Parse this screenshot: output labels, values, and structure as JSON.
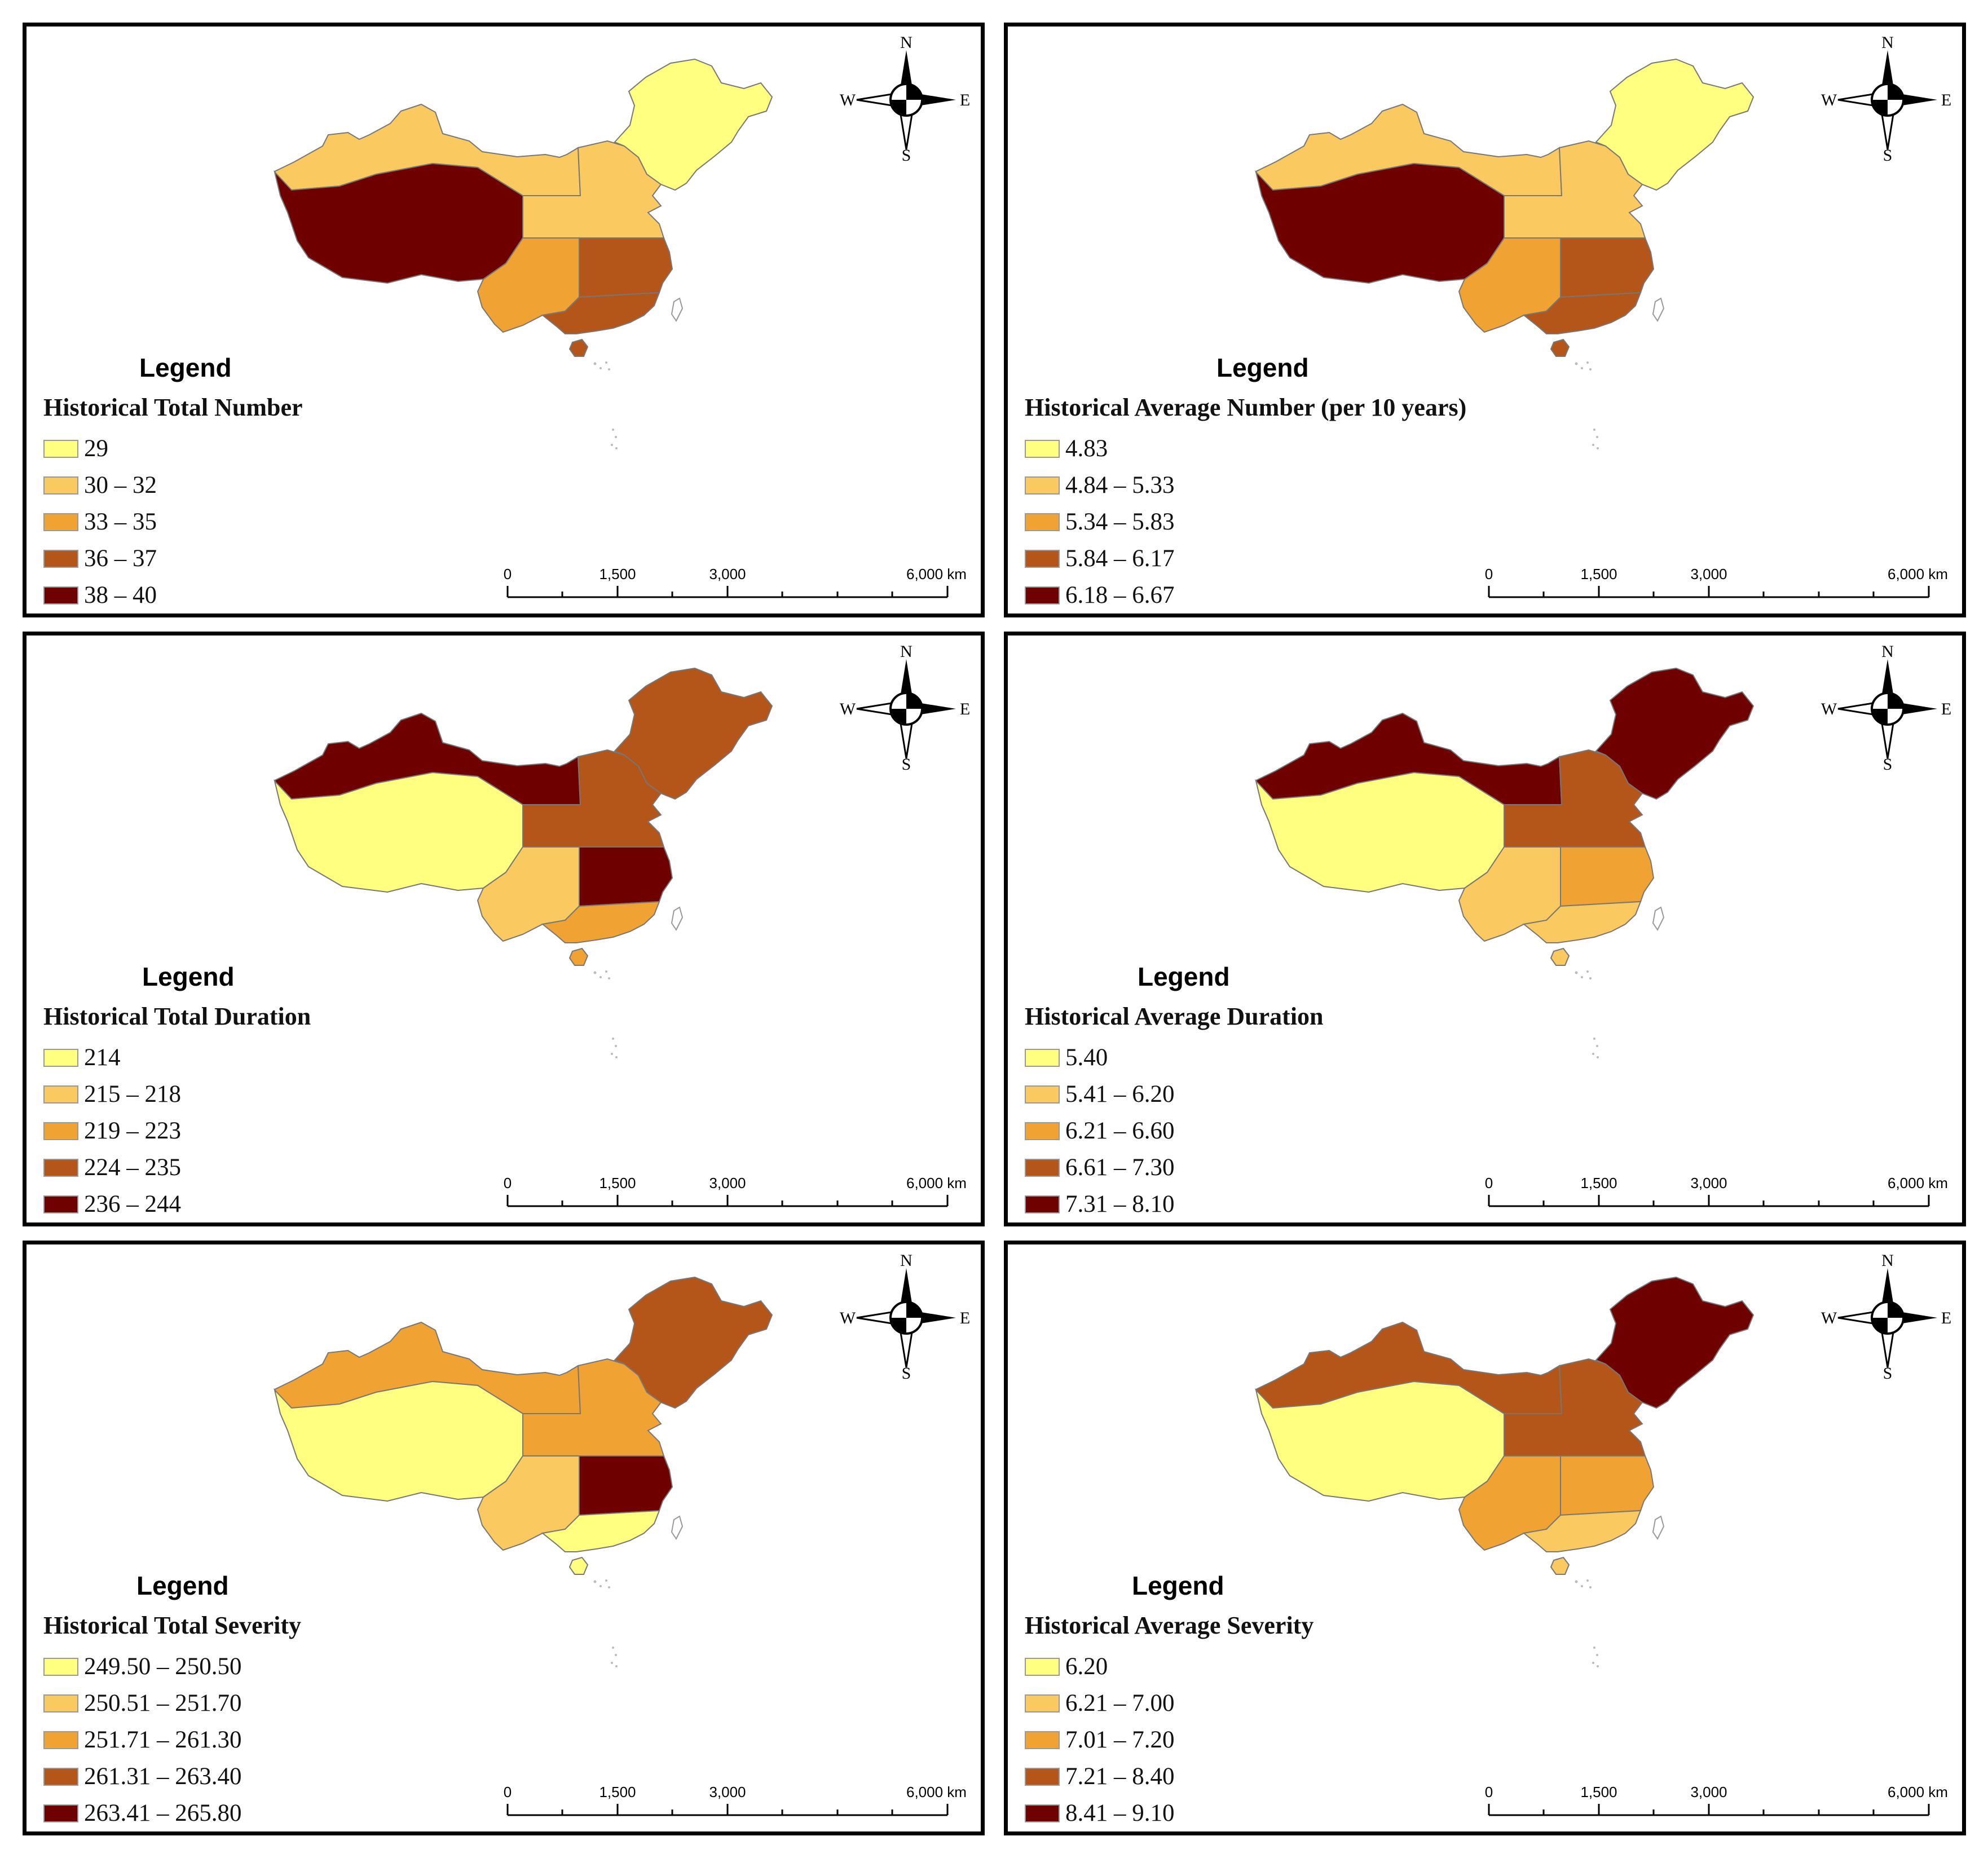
{
  "compass": {
    "n": "N",
    "s": "S",
    "e": "E",
    "w": "W"
  },
  "scale": {
    "ticks": [
      "0",
      "1,500",
      "3,000",
      "6,000 km"
    ]
  },
  "panels": [
    {
      "heading": "Legend",
      "title": "Historical Total Number",
      "legend": [
        "29",
        "30 – 32",
        "33 – 35",
        "36 – 37",
        "38 – 40"
      ],
      "regions": {
        "northwest": 1,
        "tibet": 4,
        "north": 1,
        "northeast": 0,
        "southwest": 2,
        "east": 3,
        "south": 3
      }
    },
    {
      "heading": "Legend",
      "title": "Historical Average Number (per 10 years)",
      "legend": [
        "4.83",
        "4.84 – 5.33",
        "5.34 – 5.83",
        "5.84 – 6.17",
        "6.18 – 6.67"
      ],
      "regions": {
        "northwest": 1,
        "tibet": 4,
        "north": 1,
        "northeast": 0,
        "southwest": 2,
        "east": 3,
        "south": 3
      }
    },
    {
      "heading": "Legend",
      "title": "Historical Total Duration",
      "legend": [
        "214",
        "215 – 218",
        "219 – 223",
        "224 – 235",
        "236 – 244"
      ],
      "regions": {
        "northwest": 4,
        "tibet": 0,
        "north": 3,
        "northeast": 3,
        "southwest": 1,
        "east": 4,
        "south": 2
      }
    },
    {
      "heading": "Legend",
      "title": "Historical Average Duration",
      "legend": [
        "5.40",
        "5.41 – 6.20",
        "6.21 – 6.60",
        "6.61 – 7.30",
        "7.31 – 8.10"
      ],
      "regions": {
        "northwest": 4,
        "tibet": 0,
        "north": 3,
        "northeast": 4,
        "southwest": 1,
        "east": 2,
        "south": 1
      }
    },
    {
      "heading": "Legend",
      "title": "Historical Total Severity",
      "legend": [
        "249.50 – 250.50",
        "250.51 – 251.70",
        "251.71 – 261.30",
        "261.31 – 263.40",
        "263.41 – 265.80"
      ],
      "regions": {
        "northwest": 2,
        "tibet": 0,
        "north": 2,
        "northeast": 3,
        "southwest": 1,
        "east": 4,
        "south": 0
      }
    },
    {
      "heading": "Legend",
      "title": "Historical Average Severity",
      "legend": [
        "6.20",
        "6.21 – 7.00",
        "7.01 – 7.20",
        "7.21 – 8.40",
        "8.41 – 9.10"
      ],
      "regions": {
        "northwest": 3,
        "tibet": 0,
        "north": 3,
        "northeast": 4,
        "southwest": 2,
        "east": 2,
        "south": 1
      }
    }
  ],
  "palette": [
    "#ffff80",
    "#fac95f",
    "#f0a232",
    "#b4561a",
    "#6e0000"
  ]
}
